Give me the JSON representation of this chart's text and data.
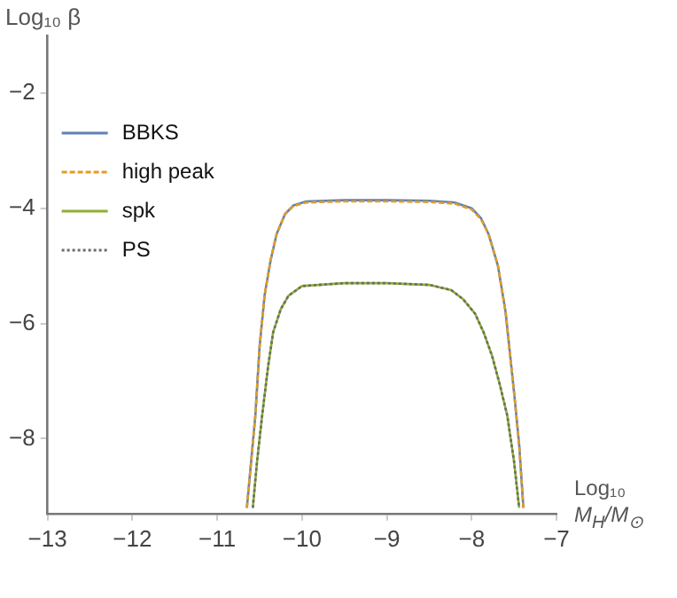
{
  "chart_data": {
    "type": "line",
    "xlabel": "Log₁₀ M$_{H}$/M$_{⊙}$",
    "ylabel": "Log₁₀ β",
    "xlim": [
      -13,
      -7
    ],
    "xticks": [
      -13,
      -12,
      -11,
      -10,
      -9,
      -8,
      -7
    ],
    "ylim": [
      -9.3,
      -1
    ],
    "yticks": [
      -8,
      -6,
      -4,
      -2
    ],
    "grid": false,
    "legend": "top left",
    "series": [
      {
        "name": "BBKS",
        "color": "#5e81b5",
        "line_style": "solid",
        "x": [
          -10.65,
          -10.6,
          -10.55,
          -10.5,
          -10.44,
          -10.37,
          -10.3,
          -10.2,
          -10.1,
          -9.95,
          -9.5,
          -9,
          -8.5,
          -8.2,
          -8.0,
          -7.89,
          -7.8,
          -7.69,
          -7.6,
          -7.55,
          -7.5,
          -7.44,
          -7.39
        ],
        "values": [
          -9.2,
          -8.4,
          -7.6,
          -6.4,
          -5.5,
          -4.9,
          -4.45,
          -4.1,
          -3.95,
          -3.88,
          -3.86,
          -3.86,
          -3.87,
          -3.9,
          -4.0,
          -4.17,
          -4.45,
          -5.0,
          -5.8,
          -6.5,
          -7.2,
          -8.1,
          -9.2
        ]
      },
      {
        "name": "high peak",
        "color": "#e19c24",
        "line_style": "dashed",
        "x": [
          -10.65,
          -10.6,
          -10.55,
          -10.5,
          -10.44,
          -10.37,
          -10.3,
          -10.2,
          -10.1,
          -9.95,
          -9.5,
          -9,
          -8.5,
          -8.2,
          -8.0,
          -7.89,
          -7.8,
          -7.69,
          -7.6,
          -7.55,
          -7.5,
          -7.44,
          -7.39
        ],
        "values": [
          -9.2,
          -8.4,
          -7.6,
          -6.4,
          -5.5,
          -4.9,
          -4.45,
          -4.1,
          -3.96,
          -3.9,
          -3.88,
          -3.88,
          -3.89,
          -3.92,
          -4.02,
          -4.19,
          -4.45,
          -5.0,
          -5.8,
          -6.5,
          -7.2,
          -8.1,
          -9.2
        ]
      },
      {
        "name": "spk",
        "color": "#8fb032",
        "line_style": "solid",
        "x": [
          -10.58,
          -10.53,
          -10.47,
          -10.4,
          -10.34,
          -10.25,
          -10.16,
          -10.0,
          -9.5,
          -9,
          -8.5,
          -8.24,
          -8.1,
          -7.96,
          -7.86,
          -7.76,
          -7.67,
          -7.58,
          -7.5,
          -7.44
        ],
        "values": [
          -9.2,
          -8.4,
          -7.6,
          -6.75,
          -6.15,
          -5.75,
          -5.52,
          -5.35,
          -5.3,
          -5.3,
          -5.33,
          -5.42,
          -5.58,
          -5.83,
          -6.15,
          -6.56,
          -7.05,
          -7.6,
          -8.4,
          -9.2
        ]
      },
      {
        "name": "PS",
        "color": "#6b6b6b",
        "line_style": "dotted",
        "x": [
          -10.58,
          -10.53,
          -10.47,
          -10.4,
          -10.34,
          -10.25,
          -10.16,
          -10.0,
          -9.5,
          -9,
          -8.5,
          -8.24,
          -8.1,
          -7.96,
          -7.86,
          -7.76,
          -7.67,
          -7.58,
          -7.5,
          -7.44
        ],
        "values": [
          -9.2,
          -8.4,
          -7.6,
          -6.75,
          -6.15,
          -5.75,
          -5.52,
          -5.35,
          -5.3,
          -5.3,
          -5.33,
          -5.42,
          -5.58,
          -5.83,
          -6.15,
          -6.56,
          -7.05,
          -7.6,
          -8.4,
          -9.2
        ]
      }
    ]
  }
}
